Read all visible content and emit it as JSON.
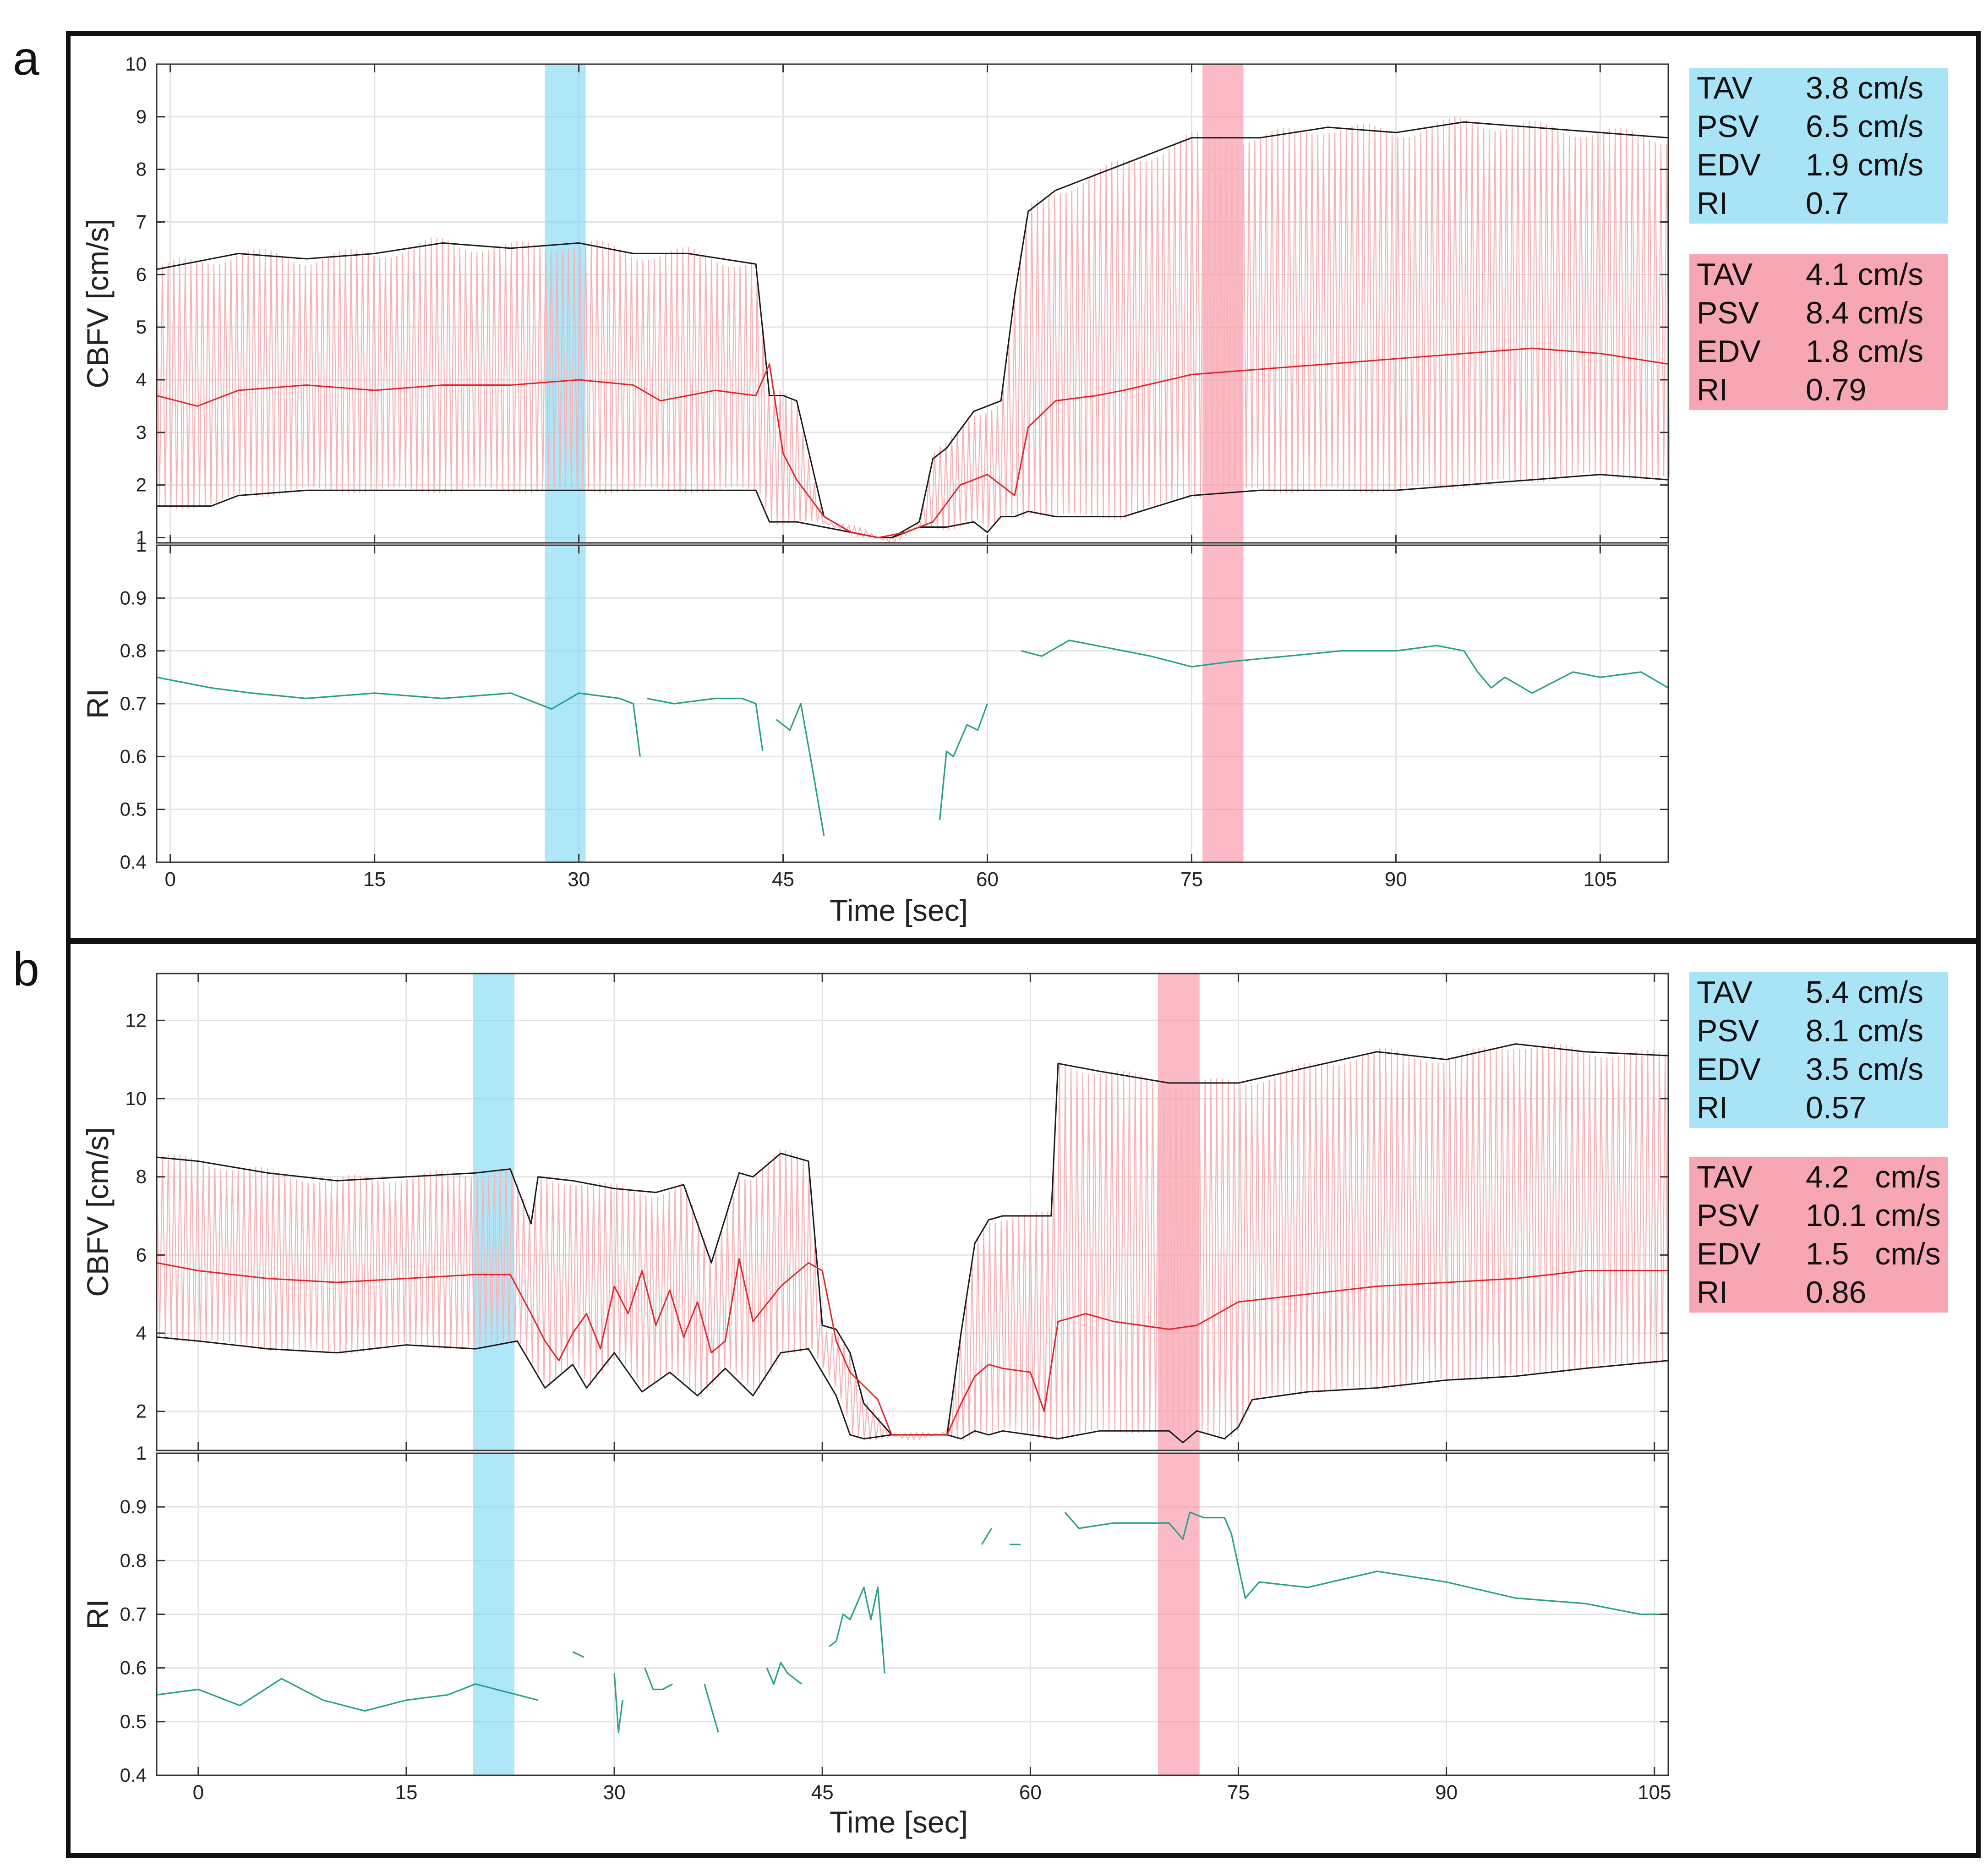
{
  "colors": {
    "blue_band": "#7fd9f4",
    "red_band": "#f98fa2",
    "envelope": "#1a1a1a",
    "mean": "#e0242c",
    "trace": "#f6b2b6",
    "ri_line": "#2a9f88",
    "grid": "#e3e3e3",
    "box_blue": "#a9e3f6",
    "box_red": "#f7a7b3"
  },
  "panels": [
    {
      "letter": "a",
      "xlabel": "Time [sec]",
      "cbfv_ylabel": "CBFV [cm/s]",
      "ri_ylabel": "RI",
      "stats": [
        {
          "color": "blue",
          "rows": [
            {
              "key": "TAV",
              "value": "3.8 cm/s"
            },
            {
              "key": "PSV",
              "value": "6.5 cm/s"
            },
            {
              "key": "EDV",
              "value": "1.9 cm/s"
            },
            {
              "key": "RI",
              "value": "0.7"
            }
          ]
        },
        {
          "color": "red",
          "rows": [
            {
              "key": "TAV",
              "value": "4.1 cm/s"
            },
            {
              "key": "PSV",
              "value": "8.4 cm/s"
            },
            {
              "key": "EDV",
              "value": "1.8 cm/s"
            },
            {
              "key": "RI",
              "value": "0.79"
            }
          ]
        }
      ]
    },
    {
      "letter": "b",
      "xlabel": "Time [sec]",
      "cbfv_ylabel": "CBFV [cm/s]",
      "ri_ylabel": "RI",
      "stats": [
        {
          "color": "blue",
          "rows": [
            {
              "key": "TAV",
              "value": "5.4 cm/s"
            },
            {
              "key": "PSV",
              "value": "8.1 cm/s"
            },
            {
              "key": "EDV",
              "value": "3.5 cm/s"
            },
            {
              "key": "RI",
              "value": "0.57"
            }
          ]
        },
        {
          "color": "red",
          "rows": [
            {
              "key": "TAV",
              "value": "4.2   cm/s"
            },
            {
              "key": "PSV",
              "value": "10.1 cm/s"
            },
            {
              "key": "EDV",
              "value": "1.5   cm/s"
            },
            {
              "key": "RI",
              "value": "0.86"
            }
          ]
        }
      ]
    }
  ],
  "chart_data": [
    {
      "type": "line",
      "panel": "a",
      "title": "",
      "xlabel": "Time [sec]",
      "ylabel": "CBFV [cm/s]",
      "xlim": [
        -1,
        110
      ],
      "ylim": [
        0.9,
        10
      ],
      "xticks": [
        0,
        15,
        30,
        45,
        60,
        75,
        90,
        105
      ],
      "yticks": [
        1,
        2,
        3,
        4,
        5,
        6,
        7,
        8,
        9,
        10
      ],
      "grid": true,
      "highlight_bands": [
        {
          "color": "blue",
          "x": [
            27.5,
            30.5
          ]
        },
        {
          "color": "red",
          "x": [
            75.8,
            78.8
          ]
        }
      ],
      "series": [
        {
          "name": "PSV envelope",
          "x": [
            -1,
            5,
            10,
            15,
            20,
            25,
            30,
            34,
            38,
            43,
            44,
            45,
            46,
            48,
            50,
            52,
            53,
            55,
            56,
            57,
            59,
            60,
            61,
            62,
            63,
            65,
            67,
            70,
            75,
            80,
            85,
            90,
            95,
            100,
            105,
            110
          ],
          "values": [
            6.1,
            6.4,
            6.3,
            6.4,
            6.6,
            6.5,
            6.6,
            6.4,
            6.4,
            6.2,
            3.7,
            3.7,
            3.6,
            1.4,
            1.1,
            1.0,
            1.0,
            1.3,
            2.5,
            2.7,
            3.4,
            3.5,
            3.6,
            5.6,
            7.2,
            7.6,
            7.8,
            8.1,
            8.6,
            8.6,
            8.8,
            8.7,
            8.9,
            8.8,
            8.7,
            8.6
          ]
        },
        {
          "name": "Mean (TAV)",
          "x": [
            -1,
            2,
            5,
            10,
            15,
            20,
            25,
            30,
            34,
            36,
            40,
            43,
            44,
            45,
            46,
            48,
            50,
            52,
            54,
            56,
            58,
            60,
            62,
            63,
            65,
            68,
            70,
            75,
            80,
            85,
            90,
            95,
            100,
            105,
            110
          ],
          "values": [
            3.7,
            3.5,
            3.8,
            3.9,
            3.8,
            3.9,
            3.9,
            4.0,
            3.9,
            3.6,
            3.8,
            3.7,
            4.3,
            2.6,
            2.1,
            1.4,
            1.1,
            1.0,
            1.1,
            1.3,
            2.0,
            2.2,
            1.8,
            3.1,
            3.6,
            3.7,
            3.8,
            4.1,
            4.2,
            4.3,
            4.4,
            4.5,
            4.6,
            4.5,
            4.3
          ]
        },
        {
          "name": "EDV envelope",
          "x": [
            -1,
            3,
            5,
            10,
            15,
            20,
            25,
            30,
            34,
            38,
            43,
            44,
            45,
            46,
            48,
            50,
            52,
            53,
            55,
            57,
            59,
            60,
            61,
            62,
            63,
            65,
            70,
            75,
            80,
            85,
            90,
            95,
            100,
            105,
            110
          ],
          "values": [
            1.6,
            1.6,
            1.8,
            1.9,
            1.9,
            1.9,
            1.9,
            1.9,
            1.9,
            1.9,
            1.9,
            1.3,
            1.3,
            1.3,
            1.2,
            1.1,
            1.0,
            1.0,
            1.2,
            1.2,
            1.3,
            1.1,
            1.4,
            1.4,
            1.5,
            1.4,
            1.4,
            1.8,
            1.9,
            1.9,
            1.9,
            2.0,
            2.1,
            2.2,
            2.1
          ]
        }
      ]
    },
    {
      "type": "line",
      "panel": "a",
      "title": "",
      "xlabel": "Time [sec]",
      "ylabel": "RI",
      "xlim": [
        -1,
        110
      ],
      "ylim": [
        0.4,
        1
      ],
      "xticks": [
        0,
        15,
        30,
        45,
        60,
        75,
        90,
        105
      ],
      "yticks": [
        0.4,
        0.5,
        0.6,
        0.7,
        0.8,
        0.9,
        1
      ],
      "grid": true,
      "highlight_bands": [
        {
          "color": "blue",
          "x": [
            27.5,
            30.5
          ]
        },
        {
          "color": "red",
          "x": [
            75.8,
            78.8
          ]
        }
      ],
      "series": [
        {
          "name": "RI segment 1",
          "x": [
            -1,
            3,
            6,
            10,
            15,
            20,
            25,
            28,
            30,
            33,
            34,
            34.5
          ],
          "values": [
            0.75,
            0.73,
            0.72,
            0.71,
            0.72,
            0.71,
            0.72,
            0.69,
            0.72,
            0.71,
            0.7,
            0.6
          ]
        },
        {
          "name": "RI segment 2",
          "x": [
            35,
            37,
            40,
            42,
            43,
            43.5
          ],
          "values": [
            0.71,
            0.7,
            0.71,
            0.71,
            0.7,
            0.61
          ]
        },
        {
          "name": "RI segment 3",
          "x": [
            44.5,
            45.5,
            46.3,
            47,
            48
          ],
          "values": [
            0.67,
            0.65,
            0.7,
            0.6,
            0.45
          ]
        },
        {
          "name": "RI segment 4",
          "x": [
            56.5,
            57,
            57.5,
            58.5,
            59.3,
            60
          ],
          "values": [
            0.48,
            0.61,
            0.6,
            0.66,
            0.65,
            0.7
          ]
        },
        {
          "name": "RI segment 5",
          "x": [
            62.5,
            64,
            66,
            68,
            72,
            75,
            78,
            82,
            86,
            90,
            93,
            95,
            96,
            97,
            98,
            100,
            103,
            105,
            108,
            110
          ],
          "values": [
            0.8,
            0.79,
            0.82,
            0.81,
            0.79,
            0.77,
            0.78,
            0.79,
            0.8,
            0.8,
            0.81,
            0.8,
            0.76,
            0.73,
            0.75,
            0.72,
            0.76,
            0.75,
            0.76,
            0.73
          ]
        }
      ]
    },
    {
      "type": "line",
      "panel": "b",
      "title": "",
      "xlabel": "Time [sec]",
      "ylabel": "CBFV [cm/s]",
      "xlim": [
        -3,
        106
      ],
      "ylim": [
        1,
        13.2
      ],
      "xticks": [
        0,
        15,
        30,
        45,
        60,
        75,
        90,
        105
      ],
      "yticks": [
        2,
        4,
        6,
        8,
        10,
        12
      ],
      "grid": true,
      "highlight_bands": [
        {
          "color": "blue",
          "x": [
            19.8,
            22.8
          ]
        },
        {
          "color": "red",
          "x": [
            69.2,
            72.2
          ]
        }
      ],
      "series": [
        {
          "name": "PSV envelope",
          "x": [
            -3,
            0,
            5,
            10,
            15,
            20,
            22.5,
            24,
            24.5,
            27,
            30,
            33,
            35,
            37,
            39,
            40,
            42,
            44,
            45,
            46,
            47,
            48,
            50,
            52,
            54,
            55,
            56,
            57,
            58,
            60,
            61.5,
            62,
            65,
            70,
            75,
            80,
            85,
            90,
            95,
            100,
            106
          ],
          "values": [
            8.5,
            8.4,
            8.1,
            7.9,
            8.0,
            8.1,
            8.2,
            6.8,
            8.0,
            7.9,
            7.7,
            7.6,
            7.8,
            5.8,
            8.1,
            8.0,
            8.6,
            8.4,
            4.2,
            4.1,
            3.5,
            2.2,
            1.4,
            1.4,
            1.4,
            4.0,
            6.3,
            6.9,
            7.0,
            7.0,
            7.0,
            10.9,
            10.7,
            10.4,
            10.4,
            10.8,
            11.2,
            11.0,
            11.4,
            11.2,
            11.1
          ]
        },
        {
          "name": "Mean (TAV)",
          "x": [
            -3,
            0,
            5,
            10,
            15,
            20,
            22.5,
            24,
            25,
            26,
            27,
            28,
            29,
            30,
            31,
            32,
            33,
            34,
            35,
            36,
            37,
            38,
            39,
            40,
            42,
            44,
            45,
            46,
            47,
            49,
            50,
            52,
            54,
            55,
            56,
            57,
            58,
            60,
            61,
            62,
            64,
            66,
            70,
            72,
            75,
            80,
            85,
            90,
            95,
            100,
            106
          ],
          "values": [
            5.8,
            5.6,
            5.4,
            5.3,
            5.4,
            5.5,
            5.5,
            4.5,
            3.8,
            3.3,
            4.0,
            4.5,
            3.6,
            5.2,
            4.5,
            5.6,
            4.2,
            5.1,
            3.9,
            4.8,
            3.5,
            3.8,
            5.9,
            4.3,
            5.2,
            5.8,
            5.6,
            3.8,
            3.0,
            2.3,
            1.4,
            1.4,
            1.4,
            2.2,
            2.9,
            3.2,
            3.1,
            3.0,
            2.0,
            4.3,
            4.5,
            4.3,
            4.1,
            4.2,
            4.8,
            5.0,
            5.2,
            5.3,
            5.4,
            5.6,
            5.6
          ]
        },
        {
          "name": "EDV envelope",
          "x": [
            -3,
            0,
            5,
            10,
            15,
            20,
            23,
            25,
            27,
            28,
            30,
            32,
            34,
            36,
            38,
            40,
            42,
            44,
            45,
            46,
            47,
            48,
            50,
            52,
            54,
            55,
            56,
            57,
            58,
            60,
            62,
            65,
            70,
            71,
            72,
            74,
            75,
            76,
            80,
            85,
            90,
            95,
            100,
            106
          ],
          "values": [
            3.9,
            3.8,
            3.6,
            3.5,
            3.7,
            3.6,
            3.8,
            2.6,
            3.2,
            2.6,
            3.5,
            2.5,
            3.0,
            2.4,
            3.1,
            2.4,
            3.5,
            3.6,
            3.0,
            2.4,
            1.4,
            1.3,
            1.4,
            1.4,
            1.4,
            1.3,
            1.5,
            1.4,
            1.5,
            1.4,
            1.3,
            1.5,
            1.5,
            1.2,
            1.5,
            1.3,
            1.6,
            2.3,
            2.5,
            2.6,
            2.8,
            2.9,
            3.1,
            3.3
          ]
        }
      ]
    },
    {
      "type": "line",
      "panel": "b",
      "title": "",
      "xlabel": "Time [sec]",
      "ylabel": "RI",
      "xlim": [
        -3,
        106
      ],
      "ylim": [
        0.4,
        1
      ],
      "xticks": [
        0,
        15,
        30,
        45,
        60,
        75,
        90,
        105
      ],
      "yticks": [
        0.4,
        0.5,
        0.6,
        0.7,
        0.8,
        0.9,
        1
      ],
      "grid": true,
      "highlight_bands": [
        {
          "color": "blue",
          "x": [
            19.8,
            22.8
          ]
        },
        {
          "color": "red",
          "x": [
            69.2,
            72.2
          ]
        }
      ],
      "series": [
        {
          "name": "RI segment 1",
          "x": [
            -3,
            0,
            3,
            6,
            9,
            12,
            15,
            18,
            20,
            23,
            24.5
          ],
          "values": [
            0.55,
            0.56,
            0.53,
            0.58,
            0.54,
            0.52,
            0.54,
            0.55,
            0.57,
            0.55,
            0.54
          ]
        },
        {
          "name": "RI segment 2",
          "x": [
            27,
            27.8
          ],
          "values": [
            0.63,
            0.62
          ]
        },
        {
          "name": "RI segment 3",
          "x": [
            30,
            30.3,
            30.6
          ],
          "values": [
            0.59,
            0.48,
            0.54
          ]
        },
        {
          "name": "RI segment 4",
          "x": [
            32.2,
            32.8,
            33.5,
            34.2
          ],
          "values": [
            0.6,
            0.56,
            0.56,
            0.57
          ]
        },
        {
          "name": "RI segment 5",
          "x": [
            36.5,
            37.5
          ],
          "values": [
            0.57,
            0.48
          ]
        },
        {
          "name": "RI segment 6",
          "x": [
            41,
            41.5,
            42,
            42.5,
            43.5
          ],
          "values": [
            0.6,
            0.57,
            0.61,
            0.59,
            0.57
          ]
        },
        {
          "name": "RI segment 7",
          "x": [
            45.5,
            46,
            46.5,
            47,
            48,
            48.5,
            49,
            49.5
          ],
          "values": [
            0.64,
            0.65,
            0.7,
            0.69,
            0.75,
            0.69,
            0.75,
            0.59
          ]
        },
        {
          "name": "RI segment 8",
          "x": [
            56.5,
            57.2
          ],
          "values": [
            0.83,
            0.86
          ]
        },
        {
          "name": "RI segment 9",
          "x": [
            58.5,
            59.3
          ],
          "values": [
            0.83,
            0.83
          ]
        },
        {
          "name": "RI segment 10",
          "x": [
            62.5,
            63.5,
            66,
            68,
            70,
            71,
            71.5,
            72.5,
            74,
            74.5,
            75.5,
            76.5,
            80,
            85,
            90,
            95,
            100,
            104,
            106
          ],
          "values": [
            0.89,
            0.86,
            0.87,
            0.87,
            0.87,
            0.84,
            0.89,
            0.88,
            0.88,
            0.85,
            0.73,
            0.76,
            0.75,
            0.78,
            0.76,
            0.73,
            0.72,
            0.7,
            0.7
          ]
        }
      ]
    }
  ]
}
